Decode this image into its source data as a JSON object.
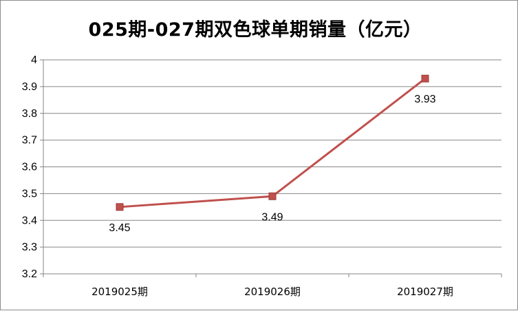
{
  "chart_data": {
    "type": "line",
    "title": "025期-027期双色球单期销量（亿元）",
    "xlabel": "",
    "ylabel": "",
    "categories": [
      "2019025期",
      "2019026期",
      "2019027期"
    ],
    "series": [
      {
        "values": [
          3.45,
          3.49,
          3.93
        ],
        "color": "#c0504d"
      }
    ],
    "data_labels": [
      "3.45",
      "3.49",
      "3.93"
    ],
    "y_ticks": [
      "3.2",
      "3.3",
      "3.4",
      "3.5",
      "3.6",
      "3.7",
      "3.8",
      "3.9",
      "4"
    ],
    "ylim": [
      3.2,
      4.0
    ],
    "grid": true,
    "legend": "none",
    "gridline_color": "#868686",
    "axis_color": "#868686"
  }
}
